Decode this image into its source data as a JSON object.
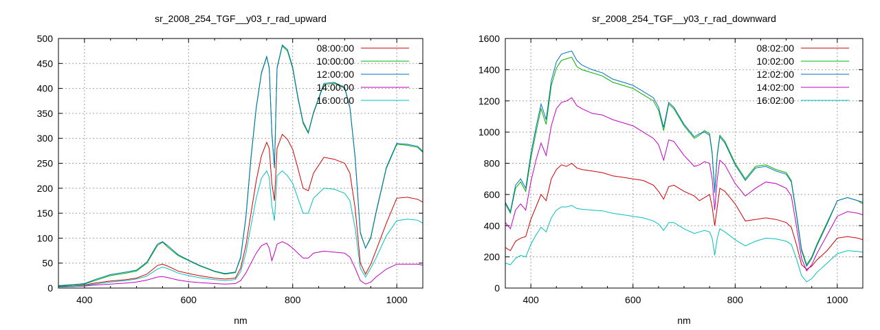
{
  "chart_data": [
    {
      "type": "line",
      "title": "sr_2008_254_TGF__y03_r_rad_upward",
      "xlabel": "nm",
      "ylabel": "",
      "xlim": [
        350,
        1050
      ],
      "ylim": [
        0,
        500
      ],
      "xticks": [
        400,
        600,
        800,
        1000
      ],
      "yticks": [
        0,
        50,
        100,
        150,
        200,
        250,
        300,
        350,
        400,
        450,
        500
      ],
      "grid": true,
      "legend": "top-right",
      "series": [
        {
          "name": "08:00:00",
          "color": "#d00000",
          "x": [
            350,
            380,
            400,
            420,
            450,
            480,
            500,
            520,
            540,
            550,
            560,
            580,
            600,
            620,
            650,
            670,
            690,
            700,
            710,
            720,
            730,
            740,
            750,
            755,
            760,
            765,
            770,
            780,
            790,
            800,
            810,
            820,
            830,
            840,
            860,
            880,
            900,
            910,
            920,
            930,
            940,
            950,
            960,
            980,
            1000,
            1020,
            1040,
            1050
          ],
          "y": [
            3,
            4,
            6,
            10,
            14,
            17,
            20,
            28,
            45,
            48,
            44,
            34,
            29,
            25,
            20,
            18,
            20,
            40,
            85,
            150,
            215,
            265,
            292,
            280,
            210,
            175,
            280,
            308,
            298,
            278,
            240,
            200,
            195,
            230,
            262,
            258,
            250,
            230,
            160,
            50,
            28,
            48,
            75,
            130,
            180,
            182,
            178,
            172
          ]
        },
        {
          "name": "10:00:00",
          "color": "#00b000",
          "x": [
            350,
            380,
            400,
            420,
            450,
            480,
            500,
            520,
            540,
            550,
            560,
            580,
            600,
            620,
            650,
            670,
            690,
            700,
            710,
            720,
            730,
            740,
            750,
            755,
            760,
            765,
            770,
            780,
            790,
            800,
            810,
            820,
            830,
            840,
            860,
            880,
            900,
            910,
            920,
            930,
            940,
            950,
            960,
            980,
            1000,
            1020,
            1040,
            1050
          ],
          "y": [
            4,
            6,
            8,
            15,
            25,
            30,
            34,
            50,
            85,
            92,
            82,
            65,
            55,
            45,
            33,
            28,
            31,
            60,
            140,
            260,
            360,
            430,
            463,
            440,
            310,
            240,
            440,
            485,
            475,
            440,
            380,
            330,
            310,
            350,
            408,
            410,
            400,
            360,
            260,
            110,
            80,
            100,
            150,
            240,
            288,
            286,
            282,
            272
          ]
        },
        {
          "name": "12:00:00",
          "color": "#0070c0",
          "x": [
            350,
            380,
            400,
            420,
            450,
            480,
            500,
            520,
            540,
            550,
            560,
            580,
            600,
            620,
            650,
            670,
            690,
            700,
            710,
            720,
            730,
            740,
            750,
            755,
            760,
            765,
            770,
            780,
            790,
            800,
            810,
            820,
            830,
            840,
            860,
            880,
            900,
            910,
            920,
            930,
            940,
            950,
            960,
            980,
            1000,
            1020,
            1040,
            1050
          ],
          "y": [
            5,
            7,
            9,
            17,
            27,
            32,
            36,
            52,
            88,
            93,
            85,
            67,
            56,
            46,
            34,
            29,
            32,
            62,
            142,
            263,
            362,
            432,
            464,
            442,
            312,
            242,
            442,
            487,
            478,
            443,
            383,
            333,
            312,
            352,
            410,
            412,
            402,
            362,
            262,
            112,
            80,
            102,
            152,
            242,
            290,
            288,
            284,
            274
          ]
        },
        {
          "name": "14:00:00",
          "color": "#c000c0",
          "x": [
            350,
            380,
            400,
            420,
            450,
            480,
            500,
            520,
            540,
            550,
            560,
            580,
            600,
            620,
            650,
            670,
            690,
            700,
            710,
            720,
            730,
            740,
            750,
            755,
            760,
            765,
            770,
            780,
            790,
            800,
            810,
            820,
            830,
            840,
            860,
            880,
            900,
            910,
            920,
            930,
            940,
            950,
            960,
            980,
            1000,
            1020,
            1040,
            1050
          ],
          "y": [
            2,
            3,
            4,
            6,
            8,
            10,
            12,
            16,
            22,
            23,
            21,
            16,
            13,
            11,
            9,
            8,
            9,
            15,
            30,
            50,
            70,
            85,
            90,
            80,
            55,
            70,
            88,
            93,
            88,
            80,
            70,
            60,
            60,
            70,
            74,
            72,
            70,
            62,
            40,
            15,
            8,
            12,
            22,
            38,
            48,
            48,
            48,
            46
          ]
        },
        {
          "name": "16:00:00",
          "color": "#00c0c0",
          "x": [
            350,
            380,
            400,
            420,
            450,
            480,
            500,
            520,
            540,
            550,
            560,
            580,
            600,
            620,
            650,
            670,
            690,
            700,
            710,
            720,
            730,
            740,
            750,
            755,
            760,
            765,
            770,
            780,
            790,
            800,
            810,
            820,
            830,
            840,
            860,
            880,
            900,
            910,
            920,
            930,
            940,
            950,
            960,
            980,
            1000,
            1020,
            1040,
            1050
          ],
          "y": [
            2,
            3,
            5,
            8,
            12,
            15,
            18,
            24,
            38,
            42,
            39,
            30,
            25,
            21,
            17,
            15,
            17,
            33,
            70,
            125,
            180,
            220,
            235,
            222,
            165,
            135,
            225,
            235,
            225,
            210,
            180,
            150,
            150,
            180,
            200,
            198,
            190,
            175,
            120,
            40,
            22,
            40,
            60,
            105,
            135,
            138,
            136,
            130
          ]
        }
      ]
    },
    {
      "type": "line",
      "title": "sr_2008_254_TGF__y03_r_rad_downward",
      "xlabel": "nm",
      "ylabel": "",
      "xlim": [
        350,
        1050
      ],
      "ylim": [
        0,
        1600
      ],
      "xticks": [
        400,
        600,
        800,
        1000
      ],
      "yticks": [
        0,
        200,
        400,
        600,
        800,
        1000,
        1200,
        1400,
        1600
      ],
      "grid": true,
      "legend": "top-right",
      "series": [
        {
          "name": "08:02:00",
          "color": "#d00000",
          "x": [
            350,
            360,
            370,
            380,
            390,
            400,
            410,
            420,
            430,
            440,
            450,
            460,
            470,
            480,
            490,
            500,
            520,
            540,
            560,
            580,
            600,
            620,
            640,
            650,
            660,
            670,
            680,
            700,
            720,
            730,
            740,
            750,
            755,
            760,
            765,
            770,
            780,
            800,
            820,
            840,
            860,
            880,
            900,
            910,
            920,
            930,
            940,
            950,
            960,
            980,
            1000,
            1020,
            1040,
            1050
          ],
          "y": [
            260,
            240,
            300,
            320,
            330,
            440,
            520,
            600,
            560,
            700,
            760,
            790,
            780,
            800,
            770,
            760,
            750,
            740,
            720,
            710,
            700,
            690,
            660,
            620,
            570,
            650,
            660,
            620,
            590,
            560,
            580,
            600,
            520,
            400,
            520,
            640,
            620,
            540,
            430,
            440,
            450,
            440,
            420,
            390,
            280,
            150,
            120,
            140,
            180,
            240,
            320,
            330,
            320,
            310
          ]
        },
        {
          "name": "10:02:00",
          "color": "#00b000",
          "x": [
            350,
            360,
            370,
            380,
            390,
            400,
            410,
            420,
            430,
            440,
            450,
            460,
            470,
            480,
            490,
            500,
            520,
            540,
            560,
            580,
            600,
            620,
            640,
            650,
            660,
            670,
            680,
            700,
            720,
            730,
            740,
            750,
            755,
            760,
            765,
            770,
            780,
            800,
            820,
            840,
            860,
            880,
            900,
            910,
            920,
            930,
            940,
            950,
            960,
            980,
            1000,
            1020,
            1040,
            1050
          ],
          "y": [
            540,
            480,
            640,
            680,
            620,
            830,
            1000,
            1150,
            1050,
            1300,
            1410,
            1460,
            1470,
            1480,
            1420,
            1400,
            1380,
            1360,
            1320,
            1300,
            1280,
            1240,
            1200,
            1140,
            1010,
            1180,
            1150,
            1040,
            960,
            980,
            1010,
            990,
            870,
            620,
            860,
            980,
            940,
            800,
            700,
            780,
            790,
            760,
            740,
            690,
            480,
            250,
            150,
            200,
            280,
            420,
            560,
            580,
            560,
            540
          ]
        },
        {
          "name": "12:02:00",
          "color": "#0070c0",
          "x": [
            350,
            360,
            370,
            380,
            390,
            400,
            410,
            420,
            430,
            440,
            450,
            460,
            470,
            480,
            490,
            500,
            520,
            540,
            560,
            580,
            600,
            620,
            640,
            650,
            660,
            670,
            680,
            700,
            720,
            730,
            740,
            750,
            755,
            760,
            765,
            770,
            780,
            800,
            820,
            840,
            860,
            880,
            900,
            910,
            920,
            930,
            940,
            950,
            960,
            980,
            1000,
            1020,
            1040,
            1050
          ],
          "y": [
            550,
            490,
            660,
            700,
            640,
            860,
            1030,
            1180,
            1080,
            1330,
            1450,
            1500,
            1510,
            1520,
            1460,
            1430,
            1400,
            1380,
            1340,
            1320,
            1300,
            1260,
            1220,
            1160,
            1030,
            1190,
            1160,
            1050,
            970,
            990,
            1000,
            980,
            860,
            610,
            850,
            970,
            930,
            790,
            690,
            770,
            780,
            750,
            730,
            680,
            470,
            240,
            140,
            190,
            270,
            410,
            560,
            580,
            560,
            550
          ]
        },
        {
          "name": "14:02:00",
          "color": "#c000c0",
          "x": [
            350,
            360,
            370,
            380,
            390,
            400,
            410,
            420,
            430,
            440,
            450,
            460,
            470,
            480,
            490,
            500,
            520,
            540,
            560,
            580,
            600,
            620,
            640,
            650,
            660,
            670,
            680,
            700,
            720,
            730,
            740,
            750,
            755,
            760,
            765,
            770,
            780,
            800,
            820,
            840,
            860,
            880,
            900,
            910,
            920,
            930,
            940,
            950,
            960,
            980,
            1000,
            1020,
            1040,
            1050
          ],
          "y": [
            420,
            380,
            500,
            540,
            500,
            680,
            820,
            930,
            850,
            1040,
            1150,
            1190,
            1200,
            1220,
            1170,
            1150,
            1120,
            1110,
            1080,
            1060,
            1040,
            1000,
            960,
            920,
            820,
            950,
            940,
            850,
            780,
            790,
            810,
            800,
            700,
            500,
            700,
            820,
            790,
            670,
            590,
            640,
            680,
            670,
            640,
            590,
            400,
            190,
            110,
            150,
            220,
            340,
            460,
            490,
            480,
            470
          ]
        },
        {
          "name": "16:02:00",
          "color": "#00c0c0",
          "x": [
            350,
            360,
            370,
            380,
            390,
            400,
            410,
            420,
            430,
            440,
            450,
            460,
            470,
            480,
            490,
            500,
            520,
            540,
            560,
            580,
            600,
            620,
            640,
            650,
            660,
            670,
            680,
            700,
            720,
            730,
            740,
            750,
            755,
            760,
            765,
            770,
            780,
            800,
            820,
            840,
            860,
            880,
            900,
            910,
            920,
            930,
            940,
            950,
            960,
            980,
            1000,
            1020,
            1040,
            1050
          ],
          "y": [
            160,
            150,
            190,
            210,
            200,
            280,
            340,
            390,
            360,
            450,
            500,
            520,
            520,
            530,
            510,
            505,
            500,
            495,
            480,
            470,
            460,
            450,
            430,
            410,
            370,
            420,
            420,
            380,
            350,
            360,
            370,
            360,
            320,
            210,
            320,
            380,
            360,
            310,
            270,
            300,
            320,
            315,
            300,
            280,
            190,
            80,
            40,
            60,
            100,
            160,
            220,
            240,
            235,
            230
          ]
        }
      ]
    }
  ]
}
